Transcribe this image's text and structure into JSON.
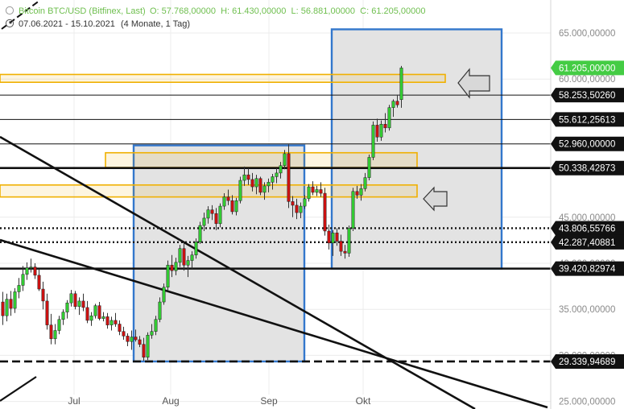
{
  "header": {
    "instrument": "Bitcoin BTC/USD (Bitfinex, Last)",
    "ohlc": "O: 57.768,00000  H: 61.430,00000  L: 56.881,00000  C: 61.205,00000",
    "period": "07.06.2021 - 15.10.2021",
    "range_note": "(4 Monate, 1 Tag)"
  },
  "colors": {
    "up": "#33cc33",
    "down": "#cc1111",
    "wick": "#333333",
    "zone_fill": "#e3e3e3",
    "zone_border": "#3377cc",
    "resistance_band": "#f0b000",
    "price_tag_current": "#44cc44",
    "grid": "#ececec"
  },
  "chart_data": {
    "type": "candlestick",
    "x_labels": [
      "Jul",
      "Aug",
      "Sep",
      "Okt"
    ],
    "y_ticks": [
      "65.000,00000",
      "60.000,00000",
      "45.000,00000",
      "40.000,00000",
      "35.000,00000",
      "30.000,00000",
      "25.000,00000"
    ],
    "ylim": [
      25000,
      65000
    ],
    "price_tags": [
      {
        "label": "61.205,00000",
        "value": 61205,
        "current": true
      },
      {
        "label": "58.253,50260",
        "value": 58253.5
      },
      {
        "label": "55.612,25613",
        "value": 55612.26
      },
      {
        "label": "52.960,00000",
        "value": 52960
      },
      {
        "label": "50.338,42873",
        "value": 50338.43
      },
      {
        "label": "43.806,55766",
        "value": 43806.56
      },
      {
        "label": "42.287,40881",
        "value": 42287.41
      },
      {
        "label": "39.420,82974",
        "value": 39420.83
      },
      {
        "label": "29.339,94689",
        "value": 29339.95
      }
    ],
    "horizontal_lines": [
      {
        "value": 58253.5,
        "style": "thin"
      },
      {
        "value": 55612.26,
        "style": "thin"
      },
      {
        "value": 52960,
        "style": "thin"
      },
      {
        "value": 50338.43,
        "style": "thick"
      },
      {
        "value": 43806.56,
        "style": "dotted"
      },
      {
        "value": 42287.41,
        "style": "dotted"
      },
      {
        "value": 39420.83,
        "style": "thick"
      },
      {
        "value": 29339.95,
        "style": "dashed"
      }
    ],
    "resistance_bands": [
      {
        "from": 59650,
        "to": 60500,
        "extent": "to-right-zone"
      },
      {
        "from": 50400,
        "to": 52000,
        "extent": "mid"
      },
      {
        "from": 47200,
        "to": 48500,
        "extent": "mid"
      }
    ],
    "consolidation_boxes": [
      {
        "from_label": "Aug",
        "high": 52800,
        "low": 29339.95
      },
      {
        "from_label": "Okt",
        "high": 65400,
        "low": 39420.83
      }
    ],
    "candles": [
      [
        35800,
        36900,
        33300,
        34300
      ],
      [
        34300,
        36700,
        33700,
        36100
      ],
      [
        36100,
        37000,
        34300,
        35100
      ],
      [
        35100,
        37300,
        34600,
        36900
      ],
      [
        36900,
        38400,
        36200,
        37600
      ],
      [
        37600,
        39700,
        37000,
        38800
      ],
      [
        38800,
        40100,
        38200,
        39500
      ],
      [
        39500,
        40500,
        39000,
        39600
      ],
      [
        39600,
        40000,
        38300,
        38700
      ],
      [
        38700,
        39300,
        37000,
        37200
      ],
      [
        37200,
        38000,
        35000,
        35900
      ],
      [
        35900,
        36700,
        32800,
        33300
      ],
      [
        33300,
        34500,
        31200,
        31800
      ],
      [
        31800,
        33400,
        31200,
        32700
      ],
      [
        32700,
        34300,
        32300,
        33900
      ],
      [
        33900,
        35000,
        33300,
        34700
      ],
      [
        34700,
        36000,
        34000,
        35700
      ],
      [
        35700,
        37100,
        35300,
        36700
      ],
      [
        36700,
        37000,
        35000,
        35300
      ],
      [
        35300,
        36300,
        34400,
        35900
      ],
      [
        35900,
        36700,
        34800,
        35200
      ],
      [
        35200,
        35900,
        33500,
        33800
      ],
      [
        33800,
        34700,
        33200,
        34300
      ],
      [
        34300,
        35600,
        34000,
        35400
      ],
      [
        35400,
        35800,
        33800,
        34000
      ],
      [
        34000,
        34700,
        33700,
        34200
      ],
      [
        34200,
        34600,
        32900,
        33300
      ],
      [
        33300,
        34200,
        32700,
        33800
      ],
      [
        33800,
        34600,
        33100,
        33400
      ],
      [
        33400,
        33800,
        32200,
        32600
      ],
      [
        32600,
        33100,
        31700,
        32100
      ],
      [
        32100,
        32400,
        31000,
        31500
      ],
      [
        31500,
        32700,
        30600,
        32000
      ],
      [
        32000,
        32800,
        31500,
        31700
      ],
      [
        31700,
        32100,
        30900,
        31200
      ],
      [
        31200,
        31900,
        29400,
        29800
      ],
      [
        29800,
        32500,
        29500,
        32200
      ],
      [
        32200,
        33400,
        31800,
        32600
      ],
      [
        32600,
        34300,
        32200,
        33900
      ],
      [
        33900,
        36300,
        33600,
        35800
      ],
      [
        35800,
        37800,
        35500,
        37400
      ],
      [
        37400,
        40300,
        37000,
        39800
      ],
      [
        39800,
        40900,
        38500,
        39200
      ],
      [
        39200,
        40600,
        38700,
        40100
      ],
      [
        40100,
        42000,
        39600,
        41600
      ],
      [
        41600,
        42300,
        39200,
        39800
      ],
      [
        39800,
        40800,
        38500,
        40300
      ],
      [
        40300,
        41300,
        39400,
        40900
      ],
      [
        40900,
        42700,
        40500,
        42300
      ],
      [
        42300,
        44500,
        42100,
        44100
      ],
      [
        44100,
        45500,
        43500,
        44900
      ],
      [
        44900,
        46200,
        44300,
        45800
      ],
      [
        45800,
        46300,
        44700,
        45400
      ],
      [
        45400,
        46000,
        43600,
        44300
      ],
      [
        44300,
        46500,
        43900,
        46200
      ],
      [
        46200,
        47600,
        45800,
        47200
      ],
      [
        47200,
        48000,
        46300,
        46800
      ],
      [
        46800,
        47400,
        45300,
        45600
      ],
      [
        45600,
        47100,
        45200,
        46800
      ],
      [
        46800,
        49400,
        46500,
        49000
      ],
      [
        49000,
        50500,
        48400,
        49600
      ],
      [
        49600,
        50300,
        48500,
        49100
      ],
      [
        49100,
        49800,
        47800,
        48300
      ],
      [
        48300,
        49600,
        47500,
        49200
      ],
      [
        49200,
        49400,
        47400,
        47700
      ],
      [
        47700,
        48800,
        46900,
        48400
      ],
      [
        48400,
        49200,
        47700,
        48800
      ],
      [
        48800,
        49700,
        48000,
        49400
      ],
      [
        49400,
        50300,
        48700,
        49800
      ],
      [
        49800,
        51000,
        49200,
        50600
      ],
      [
        50600,
        52300,
        50200,
        51900
      ],
      [
        51900,
        52900,
        46000,
        46700
      ],
      [
        46700,
        47300,
        45000,
        46300
      ],
      [
        46300,
        47000,
        44800,
        45500
      ],
      [
        45500,
        46600,
        44900,
        46200
      ],
      [
        46200,
        47400,
        45900,
        47000
      ],
      [
        47000,
        48600,
        46700,
        48300
      ],
      [
        48300,
        48900,
        47400,
        47700
      ],
      [
        47700,
        48400,
        47300,
        48000
      ],
      [
        48000,
        48800,
        47200,
        47600
      ],
      [
        47600,
        48200,
        43000,
        43500
      ],
      [
        43500,
        44200,
        41500,
        42200
      ],
      [
        42200,
        43600,
        40800,
        43300
      ],
      [
        43300,
        43800,
        41900,
        42400
      ],
      [
        42400,
        43100,
        40800,
        41300
      ],
      [
        41300,
        42000,
        40500,
        41100
      ],
      [
        41100,
        44100,
        40700,
        43800
      ],
      [
        43800,
        48200,
        43500,
        47800
      ],
      [
        47800,
        48400,
        47000,
        47400
      ],
      [
        47400,
        48600,
        46800,
        48100
      ],
      [
        48100,
        49800,
        47800,
        49300
      ],
      [
        49300,
        51800,
        49000,
        51500
      ],
      [
        51500,
        55400,
        51200,
        55000
      ],
      [
        55000,
        55700,
        53200,
        53700
      ],
      [
        53700,
        55500,
        53300,
        55100
      ],
      [
        55100,
        56300,
        54200,
        54700
      ],
      [
        54700,
        57200,
        54400,
        56900
      ],
      [
        56900,
        57800,
        55900,
        57600
      ],
      [
        57600,
        58300,
        56900,
        57200
      ],
      [
        57768,
        61430,
        56881,
        61205
      ]
    ]
  }
}
